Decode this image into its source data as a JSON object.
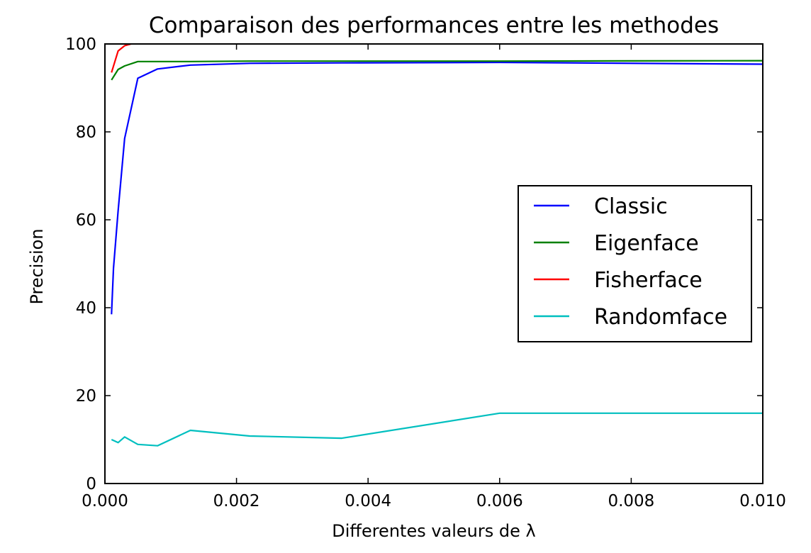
{
  "chart_data": {
    "type": "line",
    "title": "Comparaison des performances entre les methodes",
    "xlabel": "Differentes valeurs de λ",
    "ylabel": "Precision",
    "xlim": [
      0.0,
      0.01
    ],
    "ylim": [
      0,
      100
    ],
    "xticks": [
      "0.000",
      "0.002",
      "0.004",
      "0.006",
      "0.008",
      "0.010"
    ],
    "yticks": [
      "0",
      "20",
      "40",
      "60",
      "80",
      "100"
    ],
    "grid": false,
    "legend_position": "center-right",
    "series": [
      {
        "name": "Classic",
        "color": "#0000ff",
        "x": [
          0.0001,
          0.00013,
          0.0002,
          0.0003,
          0.0005,
          0.0008,
          0.0013,
          0.0022,
          0.0036,
          0.006,
          0.01
        ],
        "y": [
          38.5,
          49,
          62,
          78.5,
          92.2,
          94.3,
          95.2,
          95.6,
          95.7,
          95.8,
          95.4
        ]
      },
      {
        "name": "Eigenface",
        "color": "#008000",
        "x": [
          0.0001,
          0.0002,
          0.0003,
          0.0005,
          0.0008,
          0.0013,
          0.0022,
          0.0036,
          0.006,
          0.01
        ],
        "y": [
          91.8,
          94.2,
          95.0,
          96.0,
          96.0,
          96.0,
          96.1,
          96.1,
          96.1,
          96.2
        ]
      },
      {
        "name": "Fisherface",
        "color": "#ff0000",
        "x": [
          0.0001,
          0.0002,
          0.0003,
          0.0004
        ],
        "y": [
          93.5,
          98.4,
          99.6,
          100
        ]
      },
      {
        "name": "Randomface",
        "color": "#00bfbf",
        "x": [
          0.0001,
          0.0002,
          0.0003,
          0.0005,
          0.0008,
          0.0013,
          0.0022,
          0.0036,
          0.006,
          0.01
        ],
        "y": [
          10.0,
          9.3,
          10.6,
          8.9,
          8.6,
          12.1,
          10.8,
          10.3,
          16.0,
          16.0
        ]
      }
    ]
  }
}
